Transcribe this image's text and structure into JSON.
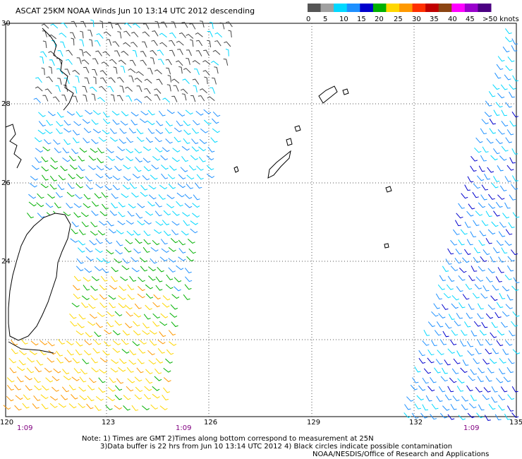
{
  "title": "ASCAT 25KM NOAA Winds  Jun 10 13:14 UTC 2012 descending",
  "legend": {
    "labels": [
      "0",
      "5",
      "10",
      "15",
      "20",
      "25",
      "30",
      "35",
      "40",
      "45",
      ">50 knots"
    ],
    "colors": [
      "#555555",
      "#a0a0a0",
      "#00d8ff",
      "#1e90ff",
      "#0000cd",
      "#00b000",
      "#ffd700",
      "#ff9900",
      "#ff3000",
      "#c00000",
      "#8b4513",
      "#ff00ff",
      "#9900cc",
      "#4b0082"
    ]
  },
  "axes": {
    "lat_labels": [
      "30",
      "28",
      "26",
      "24"
    ],
    "lon_labels": [
      "120",
      "123",
      "126",
      "129",
      "132",
      "135"
    ]
  },
  "swath_times": [
    "1:09",
    "1:09",
    "1:09"
  ],
  "notes": {
    "line1": "Note: 1) Times are GMT 2)Times along bottom correspond to measurement at 25N",
    "line2": "3)Data buffer is 22 hrs from Jun 10 13:14 UTC 2012 4) Black circles indicate possible contamination",
    "line3": "NOAA/NESDIS/Office of Research and Applications"
  }
}
